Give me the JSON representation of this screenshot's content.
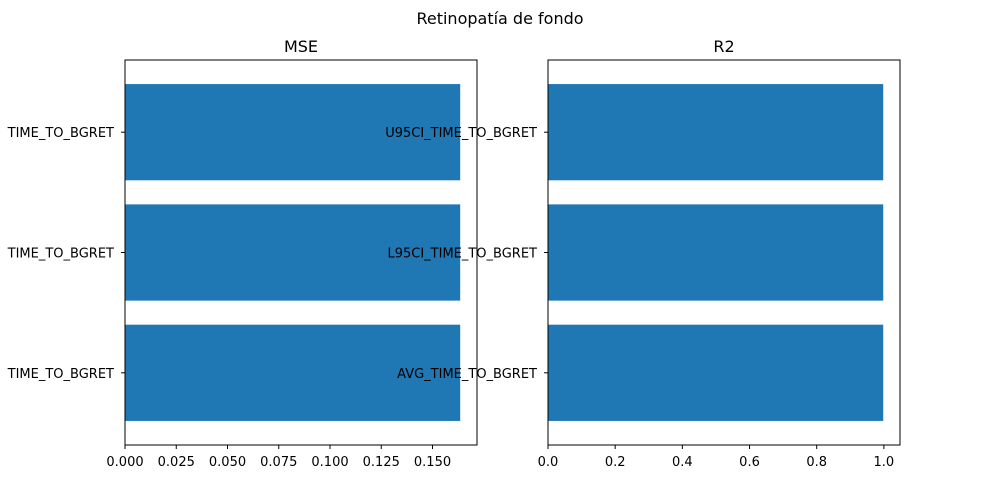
{
  "suptitle": "Retinopatía de fondo",
  "chart_data": [
    {
      "type": "bar",
      "orientation": "horizontal",
      "title": "MSE",
      "categories": [
        "AVG_TIME_TO_BGRET",
        "L95CI_TIME_TO_BGRET",
        "U95CI_TIME_TO_BGRET"
      ],
      "category_labels_visible": [
        "TIME_TO_BGRET",
        "TIME_TO_BGRET",
        "TIME_TO_BGRET"
      ],
      "values": [
        0.1635,
        0.1635,
        0.1635
      ],
      "xlim": [
        0,
        0.1717
      ],
      "xticks": [
        0,
        0.025,
        0.05,
        0.075,
        0.1,
        0.125,
        0.15
      ],
      "xtick_labels": [
        "0.000",
        "0.025",
        "0.050",
        "0.075",
        "0.100",
        "0.125",
        "0.150"
      ],
      "xlabel": "",
      "ylabel": "",
      "bar_color": "#1f77b4",
      "grid": false
    },
    {
      "type": "bar",
      "orientation": "horizontal",
      "title": "R2",
      "categories": [
        "AVG_TIME_TO_BGRET",
        "L95CI_TIME_TO_BGRET",
        "U95CI_TIME_TO_BGRET"
      ],
      "category_labels_visible": [
        "AVG_TIME_TO_BGRET",
        "L95CI_TIME_TO_BGRET",
        "U95CI_TIME_TO_BGRET"
      ],
      "values": [
        0.998,
        0.998,
        0.998
      ],
      "xlim": [
        0,
        1.048
      ],
      "xticks": [
        0,
        0.2,
        0.4,
        0.6,
        0.8,
        1.0
      ],
      "xtick_labels": [
        "0.0",
        "0.2",
        "0.4",
        "0.6",
        "0.8",
        "1.0"
      ],
      "xlabel": "",
      "ylabel": "",
      "bar_color": "#1f77b4",
      "grid": false
    }
  ]
}
